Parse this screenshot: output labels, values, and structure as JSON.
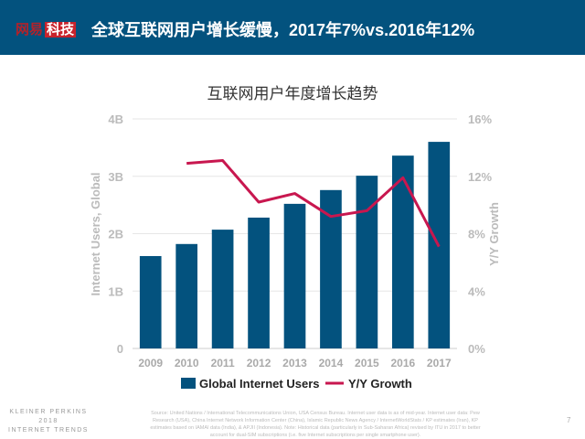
{
  "header": {
    "brand_part1": "网易",
    "brand_part2": "科技",
    "title": "全球互联网用户增长缓慢，2017年7%vs.2016年12%"
  },
  "footer": {
    "kp_line1": "KLEINER PERKINS",
    "kp_line2": "2018",
    "kp_line3": "INTERNET TRENDS",
    "source": "Source: United Nations / International Telecommunications Union, USA Census Bureau. Internet user data is as of mid-year. Internet user data: Pew Research (USA), China Internet Network Information Center (China), Islamic Republic News Agency / InternetWorldStats / KP estimates (Iran), KP estimates based on IAMAI data (India), & APJII (Indonesia). Note: Historical data (particularly in Sub-Saharan Africa) revised by ITU in 2017 to better account for dual-SIM subscriptions (i.e. five Internet subscriptions per single smartphone user).",
    "page": "7"
  },
  "chart_data": {
    "type": "bar+line",
    "title": "互联网用户年度增长趋势",
    "categories": [
      "2009",
      "2010",
      "2011",
      "2012",
      "2013",
      "2014",
      "2015",
      "2016",
      "2017"
    ],
    "ylabel": "Internet Users, Global",
    "y2label": "Y/Y Growth",
    "ylim": [
      0,
      4
    ],
    "y2lim": [
      0,
      16
    ],
    "yticks": [
      "0",
      "1B",
      "2B",
      "3B",
      "4B"
    ],
    "y2ticks": [
      "0%",
      "4%",
      "8%",
      "12%",
      "16%"
    ],
    "grid": true,
    "legend": "bottom",
    "series": [
      {
        "name": "Global Internet Users",
        "type": "bar",
        "color": "#03527e",
        "values": [
          1.61,
          1.82,
          2.07,
          2.28,
          2.52,
          2.76,
          3.01,
          3.36,
          3.6
        ]
      },
      {
        "name": "Y/Y Growth",
        "type": "line",
        "color": "#c8174f",
        "values": [
          null,
          12.9,
          13.1,
          10.2,
          10.8,
          9.2,
          9.6,
          11.9,
          7.1
        ]
      }
    ]
  }
}
